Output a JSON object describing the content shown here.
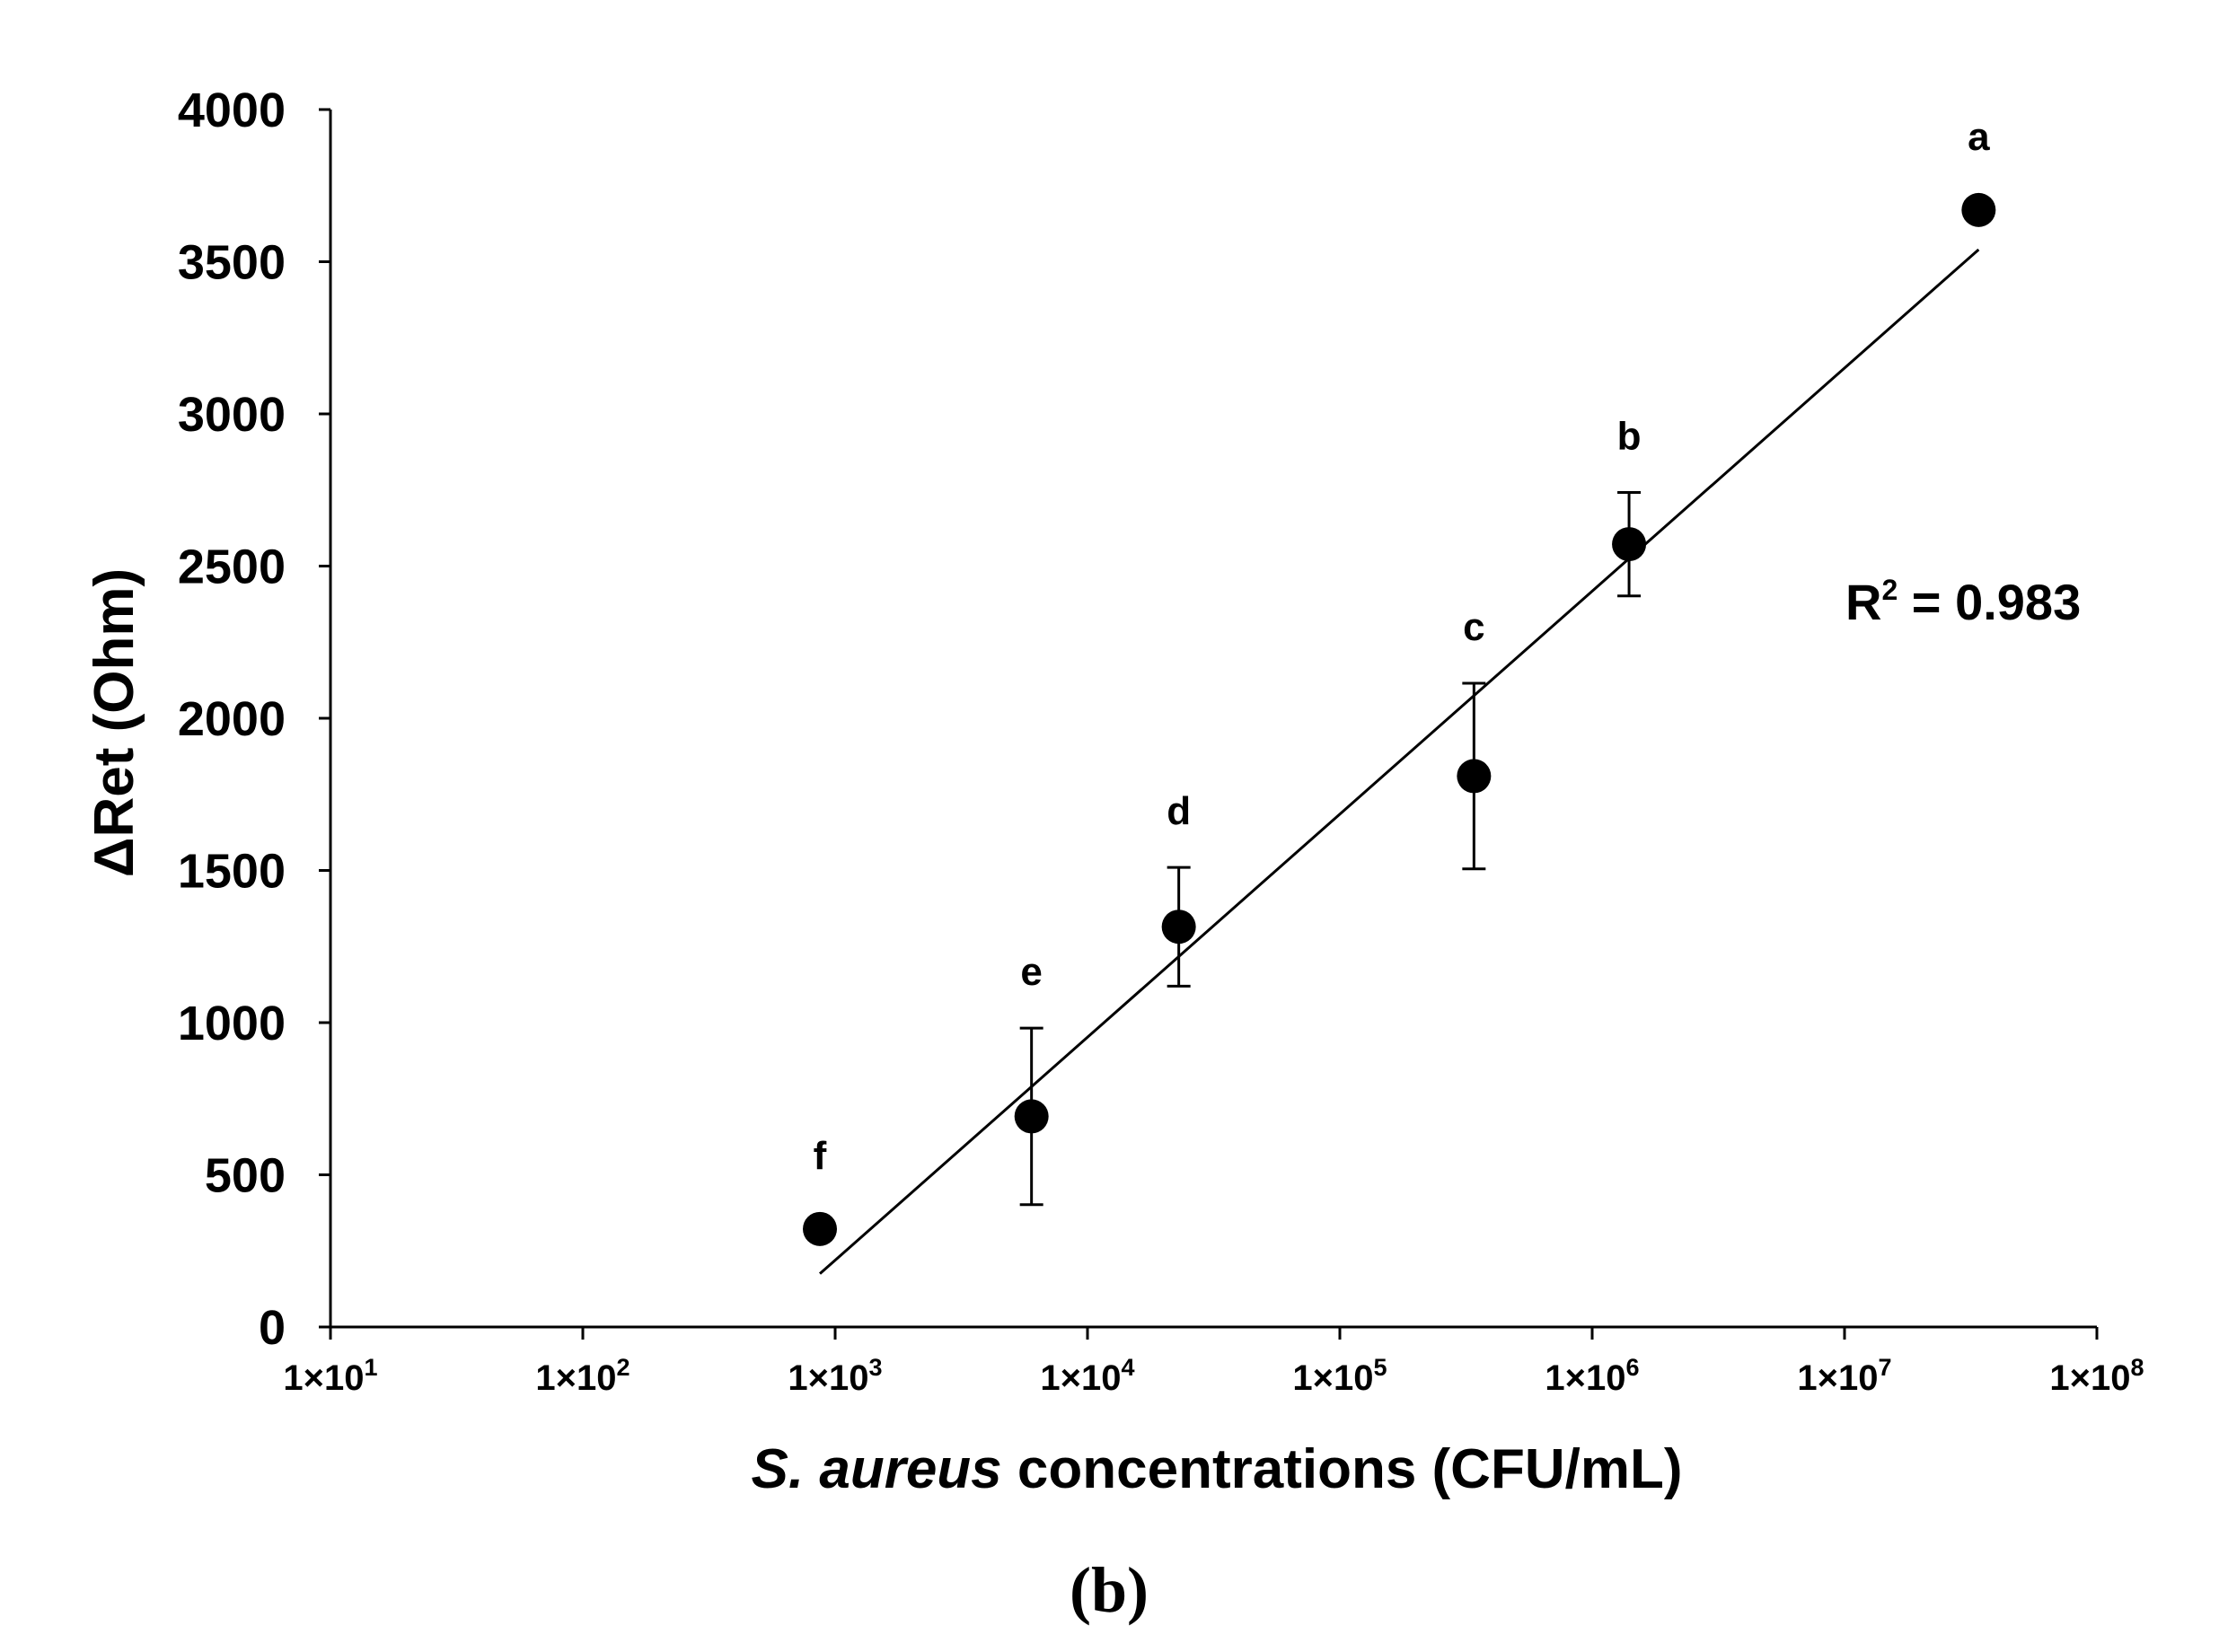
{
  "chart_data": {
    "type": "scatter",
    "x_scale": "log",
    "xlim": [
      10,
      100000000
    ],
    "ylim": [
      0,
      4000
    ],
    "y_ticks": [
      0,
      500,
      1000,
      1500,
      2000,
      2500,
      3000,
      3500,
      4000
    ],
    "x_ticks": [
      {
        "value": 10,
        "base": "1×10",
        "exp": "1"
      },
      {
        "value": 100,
        "base": "1×10",
        "exp": "2"
      },
      {
        "value": 1000,
        "base": "1×10",
        "exp": "3"
      },
      {
        "value": 10000,
        "base": "1×10",
        "exp": "4"
      },
      {
        "value": 100000,
        "base": "1×10",
        "exp": "5"
      },
      {
        "value": 1000000,
        "base": "1×10",
        "exp": "6"
      },
      {
        "value": 10000000,
        "base": "1×10",
        "exp": "7"
      },
      {
        "value": 100000000,
        "base": "1×10",
        "exp": "8"
      }
    ],
    "ylabel": "ΔRet (Ohm)",
    "xlabel_italic": "S. aureus",
    "xlabel_rest": " concentrations (CFU/mL)",
    "grid": false,
    "points": [
      {
        "label": "f",
        "x": 870,
        "y": 322,
        "err": 0
      },
      {
        "label": "e",
        "x": 6000,
        "y": 692,
        "err": 290
      },
      {
        "label": "d",
        "x": 23000,
        "y": 1315,
        "err": 195
      },
      {
        "label": "c",
        "x": 340000,
        "y": 1810,
        "err": 305
      },
      {
        "label": "b",
        "x": 1400000,
        "y": 2572,
        "err": 170
      },
      {
        "label": "a",
        "x": 34000000,
        "y": 3670,
        "err": 0
      }
    ],
    "trendline": {
      "x": [
        870,
        34000000
      ],
      "y": [
        175,
        3540
      ]
    },
    "annotation": {
      "base": "R",
      "sup": "2",
      "rest": " = 0.983"
    },
    "panel_label": "(b)"
  }
}
